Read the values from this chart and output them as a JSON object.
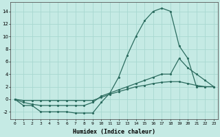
{
  "xlabel": "Humidex (Indice chaleur)",
  "xlim": [
    -0.5,
    23.5
  ],
  "ylim": [
    -3.2,
    15.5
  ],
  "bg_color": "#c5eae4",
  "grid_color": "#a8d8d0",
  "line_color": "#2a6b5e",
  "x_ticks": [
    0,
    1,
    2,
    3,
    4,
    5,
    6,
    7,
    8,
    9,
    10,
    11,
    12,
    13,
    14,
    15,
    16,
    17,
    18,
    19,
    20,
    21,
    22,
    23
  ],
  "y_ticks": [
    -2,
    0,
    2,
    4,
    6,
    8,
    10,
    12,
    14
  ],
  "series": [
    {
      "x": [
        0,
        1,
        2,
        3,
        4,
        5,
        6,
        7,
        8,
        9,
        10,
        11,
        12,
        13,
        14,
        15,
        16,
        17,
        18,
        19,
        20,
        21,
        22,
        23
      ],
      "y": [
        0,
        -1,
        -1,
        -2,
        -2,
        -2,
        -2,
        -2.2,
        -2.2,
        -2.2,
        -0.5,
        1,
        3.5,
        7,
        10,
        12.5,
        14,
        14.5,
        14,
        8.5,
        6.5,
        2,
        2,
        2
      ]
    },
    {
      "x": [
        0,
        1,
        2,
        3,
        4,
        5,
        6,
        7,
        8,
        9,
        10,
        11,
        12,
        13,
        14,
        15,
        16,
        17,
        18,
        19,
        20,
        21,
        22,
        23
      ],
      "y": [
        0,
        -0.5,
        -0.8,
        -1,
        -1,
        -1,
        -1,
        -1,
        -1,
        -0.5,
        0.5,
        1,
        1.5,
        2,
        2.5,
        3,
        3.5,
        4,
        4,
        6.5,
        5,
        4,
        3,
        2
      ]
    },
    {
      "x": [
        0,
        1,
        2,
        3,
        4,
        5,
        6,
        7,
        8,
        9,
        10,
        11,
        12,
        13,
        14,
        15,
        16,
        17,
        18,
        19,
        20,
        21,
        22,
        23
      ],
      "y": [
        0,
        -0.2,
        -0.2,
        -0.2,
        -0.2,
        -0.2,
        -0.2,
        -0.2,
        -0.2,
        -0.2,
        0.3,
        0.8,
        1.2,
        1.6,
        2,
        2.2,
        2.5,
        2.7,
        2.8,
        2.8,
        2.5,
        2.2,
        2,
        2
      ]
    }
  ]
}
